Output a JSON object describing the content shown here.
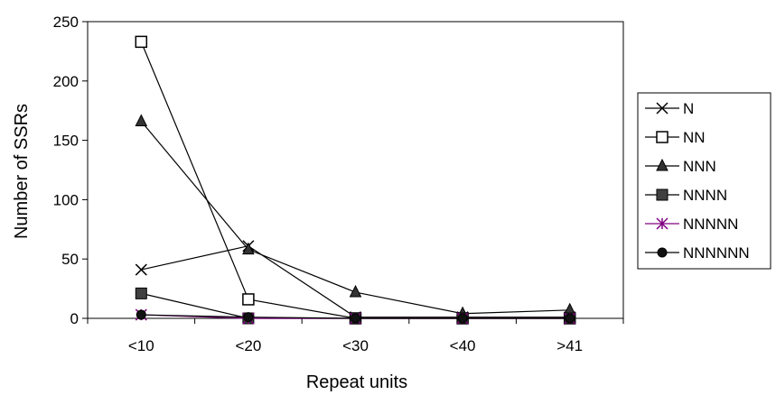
{
  "chart_data": {
    "type": "line",
    "title": "",
    "xlabel": "Repeat units",
    "ylabel": "Number of SSRs",
    "categories": [
      "<10",
      "<20",
      "<30",
      "<40",
      ">41"
    ],
    "ylim": [
      0,
      250
    ],
    "yticks": [
      "0",
      "50",
      "100",
      "150",
      "200",
      "250"
    ],
    "grid": false,
    "legend_position": "right",
    "series": [
      {
        "name": "N",
        "marker": "x",
        "color": "#000000",
        "values": [
          41,
          61,
          1,
          1,
          1
        ]
      },
      {
        "name": "NN",
        "marker": "square-open",
        "color": "#000000",
        "values": [
          233,
          16,
          0,
          0,
          0
        ]
      },
      {
        "name": "NNN",
        "marker": "triangle",
        "color": "#000000",
        "values": [
          166,
          58,
          22,
          4,
          7
        ]
      },
      {
        "name": "NNNN",
        "marker": "square",
        "color": "#000000",
        "values": [
          21,
          0,
          0,
          0,
          0
        ]
      },
      {
        "name": "NNNNN",
        "marker": "asterisk",
        "color": "#800080",
        "values": [
          3,
          0,
          0,
          0,
          0
        ]
      },
      {
        "name": "NNNNNN",
        "marker": "circle",
        "color": "#000000",
        "values": [
          3,
          1,
          0,
          0,
          0
        ]
      }
    ]
  }
}
